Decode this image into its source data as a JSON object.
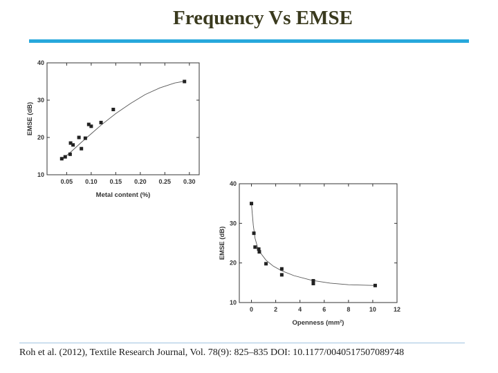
{
  "slide": {
    "title": "Frequency Vs EMSE",
    "citation": "Roh et al. (2012), Textile Research Journal, Vol. 78(9): 825–835 DOI: 10.1177/0040517507089748",
    "accent_color": "#27a8dc"
  },
  "chart_data": [
    {
      "type": "scatter",
      "title": "",
      "xlabel": "Metal content (%)",
      "ylabel": "EMSE (dB)",
      "xlim": [
        0.01,
        0.32
      ],
      "ylim": [
        10,
        40
      ],
      "x_ticks": [
        "0.05",
        "0.10",
        "0.15",
        "0.20",
        "0.25",
        "0.30"
      ],
      "x_tick_values": [
        0.05,
        0.1,
        0.15,
        0.2,
        0.25,
        0.3
      ],
      "y_ticks": [
        "10",
        "20",
        "30",
        "40"
      ],
      "y_tick_values": [
        10,
        20,
        30,
        40
      ],
      "grid": false,
      "marker_color": "#222222",
      "points": [
        {
          "x": 0.04,
          "y": 14.3
        },
        {
          "x": 0.047,
          "y": 14.8
        },
        {
          "x": 0.057,
          "y": 15.5
        },
        {
          "x": 0.058,
          "y": 18.5
        },
        {
          "x": 0.063,
          "y": 18.0
        },
        {
          "x": 0.075,
          "y": 20.0
        },
        {
          "x": 0.08,
          "y": 17.0
        },
        {
          "x": 0.088,
          "y": 19.8
        },
        {
          "x": 0.095,
          "y": 23.5
        },
        {
          "x": 0.1,
          "y": 23.0
        },
        {
          "x": 0.12,
          "y": 24.0
        },
        {
          "x": 0.145,
          "y": 27.5
        },
        {
          "x": 0.29,
          "y": 35.0
        }
      ],
      "fit": [
        {
          "x": 0.04,
          "y": 14.0
        },
        {
          "x": 0.06,
          "y": 16.3
        },
        {
          "x": 0.08,
          "y": 18.7
        },
        {
          "x": 0.1,
          "y": 21.0
        },
        {
          "x": 0.12,
          "y": 23.3
        },
        {
          "x": 0.15,
          "y": 26.4
        },
        {
          "x": 0.18,
          "y": 29.1
        },
        {
          "x": 0.21,
          "y": 31.5
        },
        {
          "x": 0.24,
          "y": 33.3
        },
        {
          "x": 0.27,
          "y": 34.6
        },
        {
          "x": 0.29,
          "y": 35.1
        }
      ]
    },
    {
      "type": "scatter",
      "title": "",
      "xlabel": "Openness (mm²)",
      "ylabel": "EMSE (dB)",
      "xlim": [
        -1,
        12
      ],
      "ylim": [
        10,
        40
      ],
      "x_ticks": [
        "0",
        "2",
        "4",
        "6",
        "8",
        "10",
        "12"
      ],
      "x_tick_values": [
        0,
        2,
        4,
        6,
        8,
        10,
        12
      ],
      "y_ticks": [
        "10",
        "20",
        "30",
        "40"
      ],
      "y_tick_values": [
        10,
        20,
        30,
        40
      ],
      "grid": false,
      "marker_color": "#222222",
      "points": [
        {
          "x": 0.0,
          "y": 35.0
        },
        {
          "x": 0.2,
          "y": 27.5
        },
        {
          "x": 0.3,
          "y": 24.0
        },
        {
          "x": 0.6,
          "y": 23.5
        },
        {
          "x": 0.65,
          "y": 22.8
        },
        {
          "x": 1.2,
          "y": 19.8
        },
        {
          "x": 2.5,
          "y": 18.5
        },
        {
          "x": 2.5,
          "y": 17.0
        },
        {
          "x": 5.1,
          "y": 15.5
        },
        {
          "x": 5.1,
          "y": 14.8
        },
        {
          "x": 10.2,
          "y": 14.3
        }
      ],
      "fit": [
        {
          "x": 0.0,
          "y": 35.0
        },
        {
          "x": 0.15,
          "y": 29.5
        },
        {
          "x": 0.3,
          "y": 26.2
        },
        {
          "x": 0.5,
          "y": 24.0
        },
        {
          "x": 0.8,
          "y": 22.3
        },
        {
          "x": 1.2,
          "y": 20.7
        },
        {
          "x": 1.8,
          "y": 19.2
        },
        {
          "x": 2.5,
          "y": 18.0
        },
        {
          "x": 3.5,
          "y": 16.8
        },
        {
          "x": 5.0,
          "y": 15.6
        },
        {
          "x": 6.5,
          "y": 14.9
        },
        {
          "x": 8.0,
          "y": 14.5
        },
        {
          "x": 10.2,
          "y": 14.3
        }
      ]
    }
  ]
}
